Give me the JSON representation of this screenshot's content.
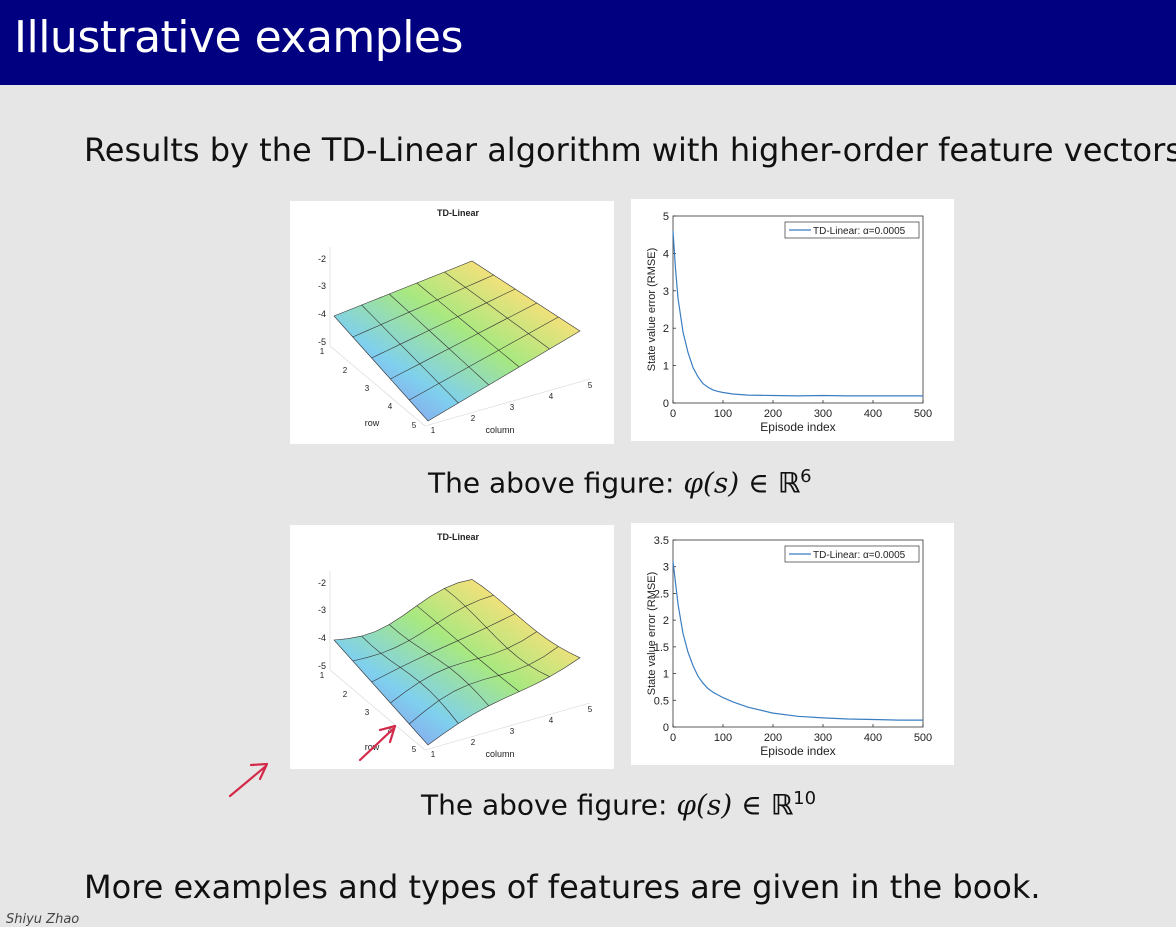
{
  "slide": {
    "title": "Illustrative examples",
    "intro": "Results by the TD-Linear algorithm with higher-order feature vectors:",
    "caption1": {
      "prefix": "The above figure: ",
      "math": "φ(s) ∈ ",
      "set": "ℝ",
      "sup": "6"
    },
    "caption2": {
      "prefix": "The above figure: ",
      "math": "φ(s) ∈ ",
      "set": "ℝ",
      "sup": "10"
    },
    "footer": "More examples and types of features are given in the book.",
    "author": "Shiyu Zhao"
  },
  "surface_plots": [
    {
      "title": "TD-Linear",
      "z_ticks": [
        "-2",
        "-3",
        "-4",
        "-5"
      ],
      "row_ticks": [
        "1",
        "2",
        "3",
        "4",
        "5"
      ],
      "column_ticks": [
        "1",
        "2",
        "3",
        "4",
        "5"
      ],
      "xlabel": "column",
      "ylabel": "row"
    },
    {
      "title": "TD-Linear",
      "z_ticks": [
        "-2",
        "-3",
        "-4",
        "-5"
      ],
      "row_ticks": [
        "1",
        "2",
        "3",
        "4",
        "5"
      ],
      "column_ticks": [
        "1",
        "2",
        "3",
        "4",
        "5"
      ],
      "xlabel": "column",
      "ylabel": "row"
    }
  ],
  "chart_data": [
    {
      "type": "line",
      "title": "",
      "xlabel": "Episode index",
      "ylabel": "State value error (RMSE)",
      "xlim": [
        0,
        500
      ],
      "ylim": [
        0,
        5
      ],
      "x_ticks": [
        0,
        100,
        200,
        300,
        400,
        500
      ],
      "y_ticks": [
        0,
        1,
        2,
        3,
        4,
        5
      ],
      "legend_position": "top-right",
      "series": [
        {
          "name": "TD-Linear: α=0.0005",
          "color": "#3a7ec0",
          "x": [
            0,
            5,
            10,
            20,
            30,
            40,
            50,
            60,
            70,
            80,
            90,
            100,
            120,
            150,
            200,
            250,
            300,
            350,
            400,
            450,
            500
          ],
          "y": [
            4.6,
            3.6,
            2.8,
            1.9,
            1.35,
            0.95,
            0.7,
            0.52,
            0.42,
            0.35,
            0.31,
            0.28,
            0.24,
            0.21,
            0.2,
            0.19,
            0.2,
            0.19,
            0.19,
            0.19,
            0.19
          ]
        }
      ]
    },
    {
      "type": "line",
      "title": "",
      "xlabel": "Episode index",
      "ylabel": "State value error (RMSE)",
      "xlim": [
        0,
        500
      ],
      "ylim": [
        0,
        3.5
      ],
      "x_ticks": [
        0,
        100,
        200,
        300,
        400,
        500
      ],
      "y_ticks": [
        0,
        0.5,
        1,
        1.5,
        2,
        2.5,
        3,
        3.5
      ],
      "legend_position": "top-right",
      "series": [
        {
          "name": "TD-Linear: α=0.0005",
          "color": "#3a7ec0",
          "x": [
            0,
            5,
            10,
            20,
            30,
            40,
            50,
            60,
            70,
            80,
            100,
            120,
            150,
            200,
            250,
            300,
            350,
            400,
            450,
            500
          ],
          "y": [
            3.1,
            2.7,
            2.3,
            1.75,
            1.4,
            1.15,
            0.95,
            0.82,
            0.72,
            0.65,
            0.55,
            0.47,
            0.37,
            0.26,
            0.2,
            0.17,
            0.15,
            0.14,
            0.13,
            0.13
          ]
        }
      ]
    }
  ],
  "annotations": {
    "arrow_color": "#d42a4a"
  }
}
